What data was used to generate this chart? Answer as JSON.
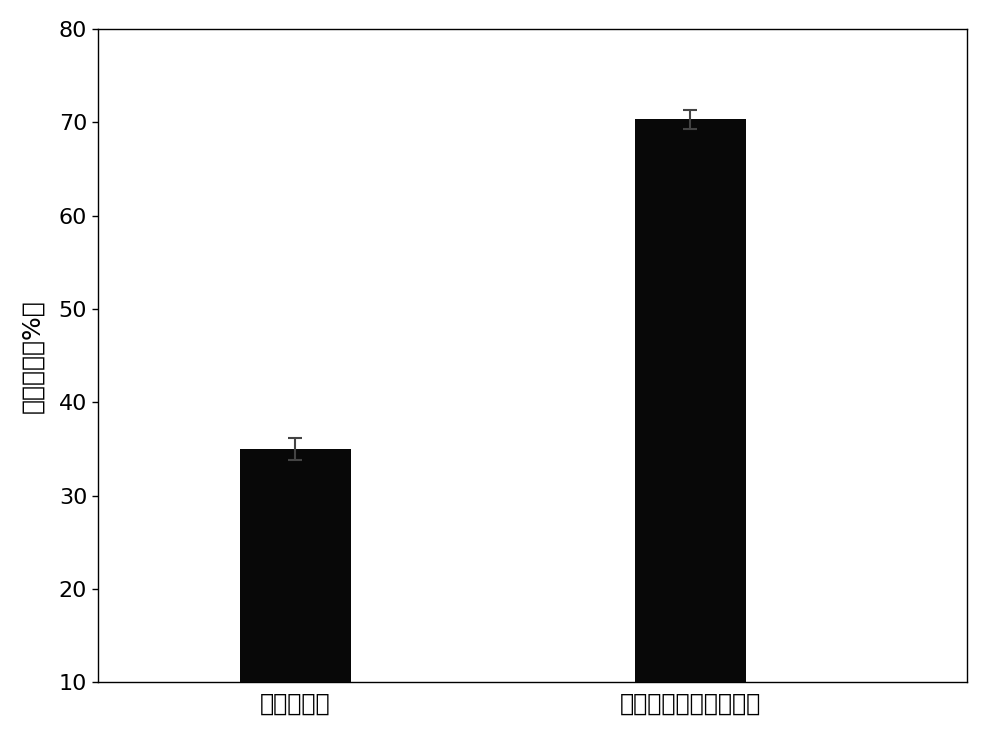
{
  "categories": [
    "无介质辅助",
    "金属螯合纳米介质辅助"
  ],
  "values": [
    35.0,
    70.3
  ],
  "errors": [
    1.2,
    1.0
  ],
  "bar_color": "#080808",
  "bar_width": 0.28,
  "x_positions": [
    1,
    2
  ],
  "xlim": [
    0.5,
    2.7
  ],
  "ylim": [
    10,
    80
  ],
  "yticks": [
    10,
    20,
    30,
    40,
    50,
    60,
    70,
    80
  ],
  "ylabel": "复性收率（%）",
  "ylabel_fontsize": 18,
  "tick_fontsize": 16,
  "xtick_fontsize": 17,
  "background_color": "#ffffff",
  "error_capsize": 5,
  "error_linewidth": 1.5,
  "error_color": "#333333"
}
